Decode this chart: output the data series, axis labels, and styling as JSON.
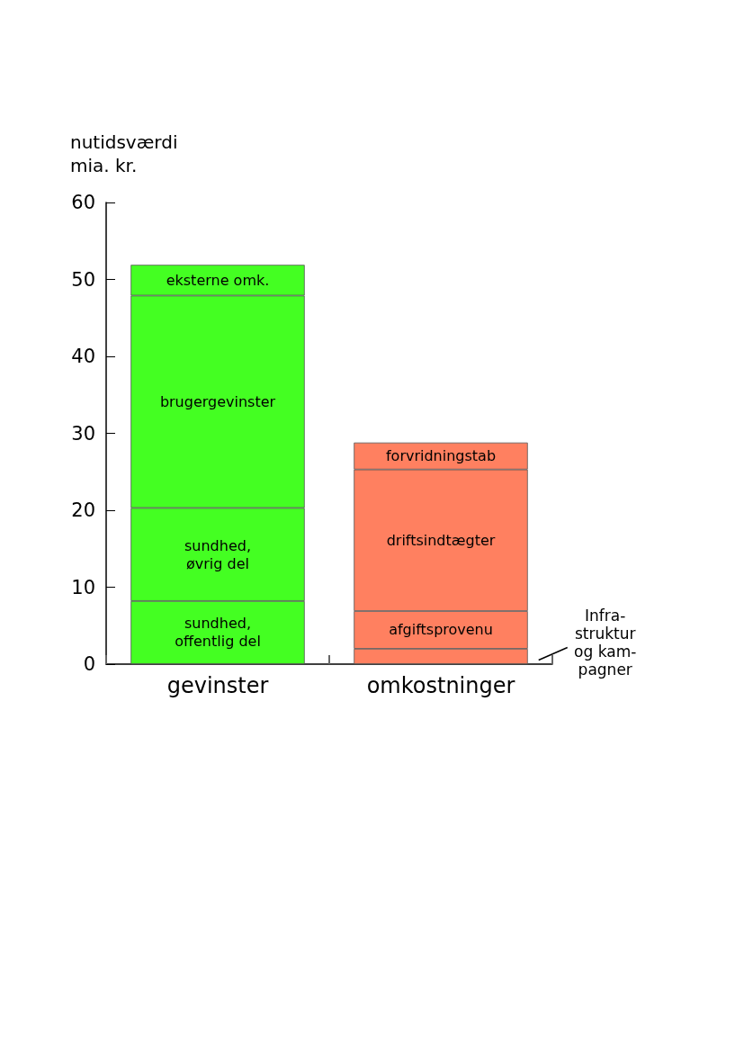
{
  "chart_data": {
    "type": "bar",
    "stacked": true,
    "ylabel": "nutidsværdi\nmia. kr.",
    "categories": [
      "gevinster",
      "omkostninger"
    ],
    "series": [
      {
        "colors": [
          "#44ff22",
          "#ff8060"
        ],
        "values": [
          8.2,
          2.0
        ],
        "value_labels": [
          "sundhed,\noffentlig del",
          null
        ]
      },
      {
        "colors": [
          "#44ff22",
          "#ff8060"
        ],
        "values": [
          12.1,
          4.9
        ],
        "value_labels": [
          "sundhed,\nøvrig del",
          "afgiftsprovenu"
        ]
      },
      {
        "colors": [
          "#44ff22",
          "#ff8060"
        ],
        "values": [
          27.6,
          18.4
        ],
        "value_labels": [
          "brugergevinster",
          "driftsindtægter"
        ]
      },
      {
        "colors": [
          "#44ff22",
          "#ff8060"
        ],
        "values": [
          4.0,
          3.5
        ],
        "value_labels": [
          "eksterne omk.",
          "forvridningstab"
        ]
      }
    ],
    "annotations": [
      "Infra-\nstruktur\nog kam-\npagner"
    ],
    "ylim": [
      0,
      60
    ],
    "yticks": [
      0,
      10,
      20,
      30,
      40,
      50,
      60
    ],
    "grid": false
  }
}
